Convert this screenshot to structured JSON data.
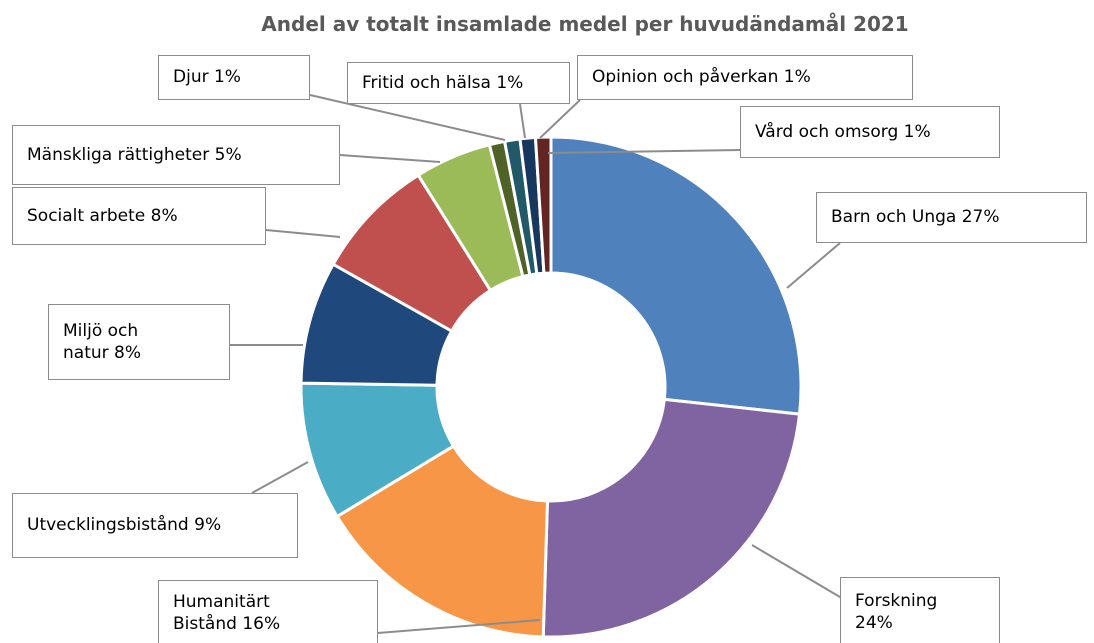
{
  "chart_data": {
    "type": "donut",
    "title": "Andel av totalt insamlade medel per huvudändamål 2021",
    "categories": [
      "Barn och Unga",
      "Forskning",
      "Humanitärt Bistånd",
      "Utvecklingsbistånd",
      "Miljö och natur",
      "Socialt arbete",
      "Mänskliga rättigheter",
      "Djur",
      "Fritid och hälsa",
      "Opinion och påverkan",
      "Vård och omsorg"
    ],
    "values": [
      27,
      24,
      16,
      9,
      8,
      8,
      5,
      1,
      1,
      1,
      1
    ],
    "value_labels": [
      "27%",
      "24%",
      "16%",
      "9%",
      "8%",
      "8%",
      "5%",
      "1%",
      "1%",
      "1%",
      "1%"
    ],
    "colors": [
      "#4f81bd",
      "#8064a2",
      "#f79646",
      "#4bacc6",
      "#1f497d",
      "#c0504d",
      "#9bbb59",
      "#4f6228",
      "#215968",
      "#17375e",
      "#632523"
    ]
  }
}
